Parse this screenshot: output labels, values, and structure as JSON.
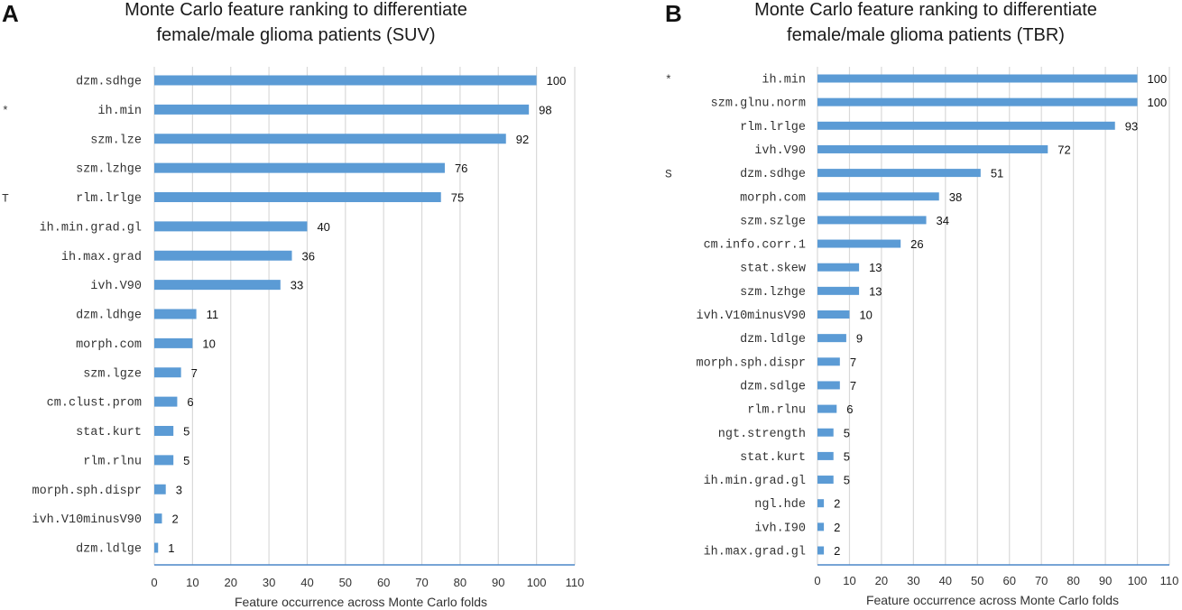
{
  "chart_data": [
    {
      "type": "bar",
      "orientation": "horizontal",
      "panel": "A",
      "title": [
        "Monte Carlo feature ranking to differentiate",
        "female/male glioma patients (SUV)"
      ],
      "xlabel": "Feature occurrence across Monte Carlo folds",
      "ylabel": "",
      "xlim": [
        0,
        110
      ],
      "xticks": [
        0,
        10,
        20,
        30,
        40,
        50,
        60,
        70,
        80,
        90,
        100,
        110
      ],
      "grid": true,
      "categories": [
        "dzm.sdhge",
        "ih.min",
        "szm.lze",
        "szm.lzhge",
        "rlm.lrlge",
        "ih.min.grad.gl",
        "ih.max.grad",
        "ivh.V90",
        "dzm.ldhge",
        "morph.com",
        "szm.lgze",
        "cm.clust.prom",
        "stat.kurt",
        "rlm.rlnu",
        "morph.sph.dispr",
        "ivh.V10minusV90",
        "dzm.ldlge"
      ],
      "values": [
        100,
        98,
        92,
        76,
        75,
        40,
        36,
        33,
        11,
        10,
        7,
        6,
        5,
        5,
        3,
        2,
        1
      ],
      "markers": [
        "",
        "*",
        "",
        "",
        "T",
        "",
        "",
        "",
        "",
        "",
        "",
        "",
        "",
        "",
        "",
        "",
        ""
      ],
      "color": "#5b9bd5"
    },
    {
      "type": "bar",
      "orientation": "horizontal",
      "panel": "B",
      "title": [
        "Monte Carlo feature ranking to differentiate",
        "female/male glioma patients (TBR)"
      ],
      "xlabel": "Feature occurrence across Monte Carlo folds",
      "ylabel": "",
      "xlim": [
        0,
        110
      ],
      "xticks": [
        0,
        10,
        20,
        30,
        40,
        50,
        60,
        70,
        80,
        90,
        100,
        110
      ],
      "grid": true,
      "categories": [
        "ih.min",
        "szm.glnu.norm",
        "rlm.lrlge",
        "ivh.V90",
        "dzm.sdhge",
        "morph.com",
        "szm.szlge",
        "cm.info.corr.1",
        "stat.skew",
        "szm.lzhge",
        "ivh.V10minusV90",
        "dzm.ldlge",
        "morph.sph.dispr",
        "dzm.sdlge",
        "rlm.rlnu",
        "ngt.strength",
        "stat.kurt",
        "ih.min.grad.gl",
        "ngl.hde",
        "ivh.I90",
        "ih.max.grad.gl"
      ],
      "values": [
        100,
        100,
        93,
        72,
        51,
        38,
        34,
        26,
        13,
        13,
        10,
        9,
        7,
        7,
        6,
        5,
        5,
        5,
        2,
        2,
        2
      ],
      "markers": [
        "*",
        "",
        "",
        "",
        "S",
        "",
        "",
        "",
        "",
        "",
        "",
        "",
        "",
        "",
        "",
        "",
        "",
        "",
        "",
        "",
        ""
      ],
      "color": "#5b9bd5"
    }
  ]
}
